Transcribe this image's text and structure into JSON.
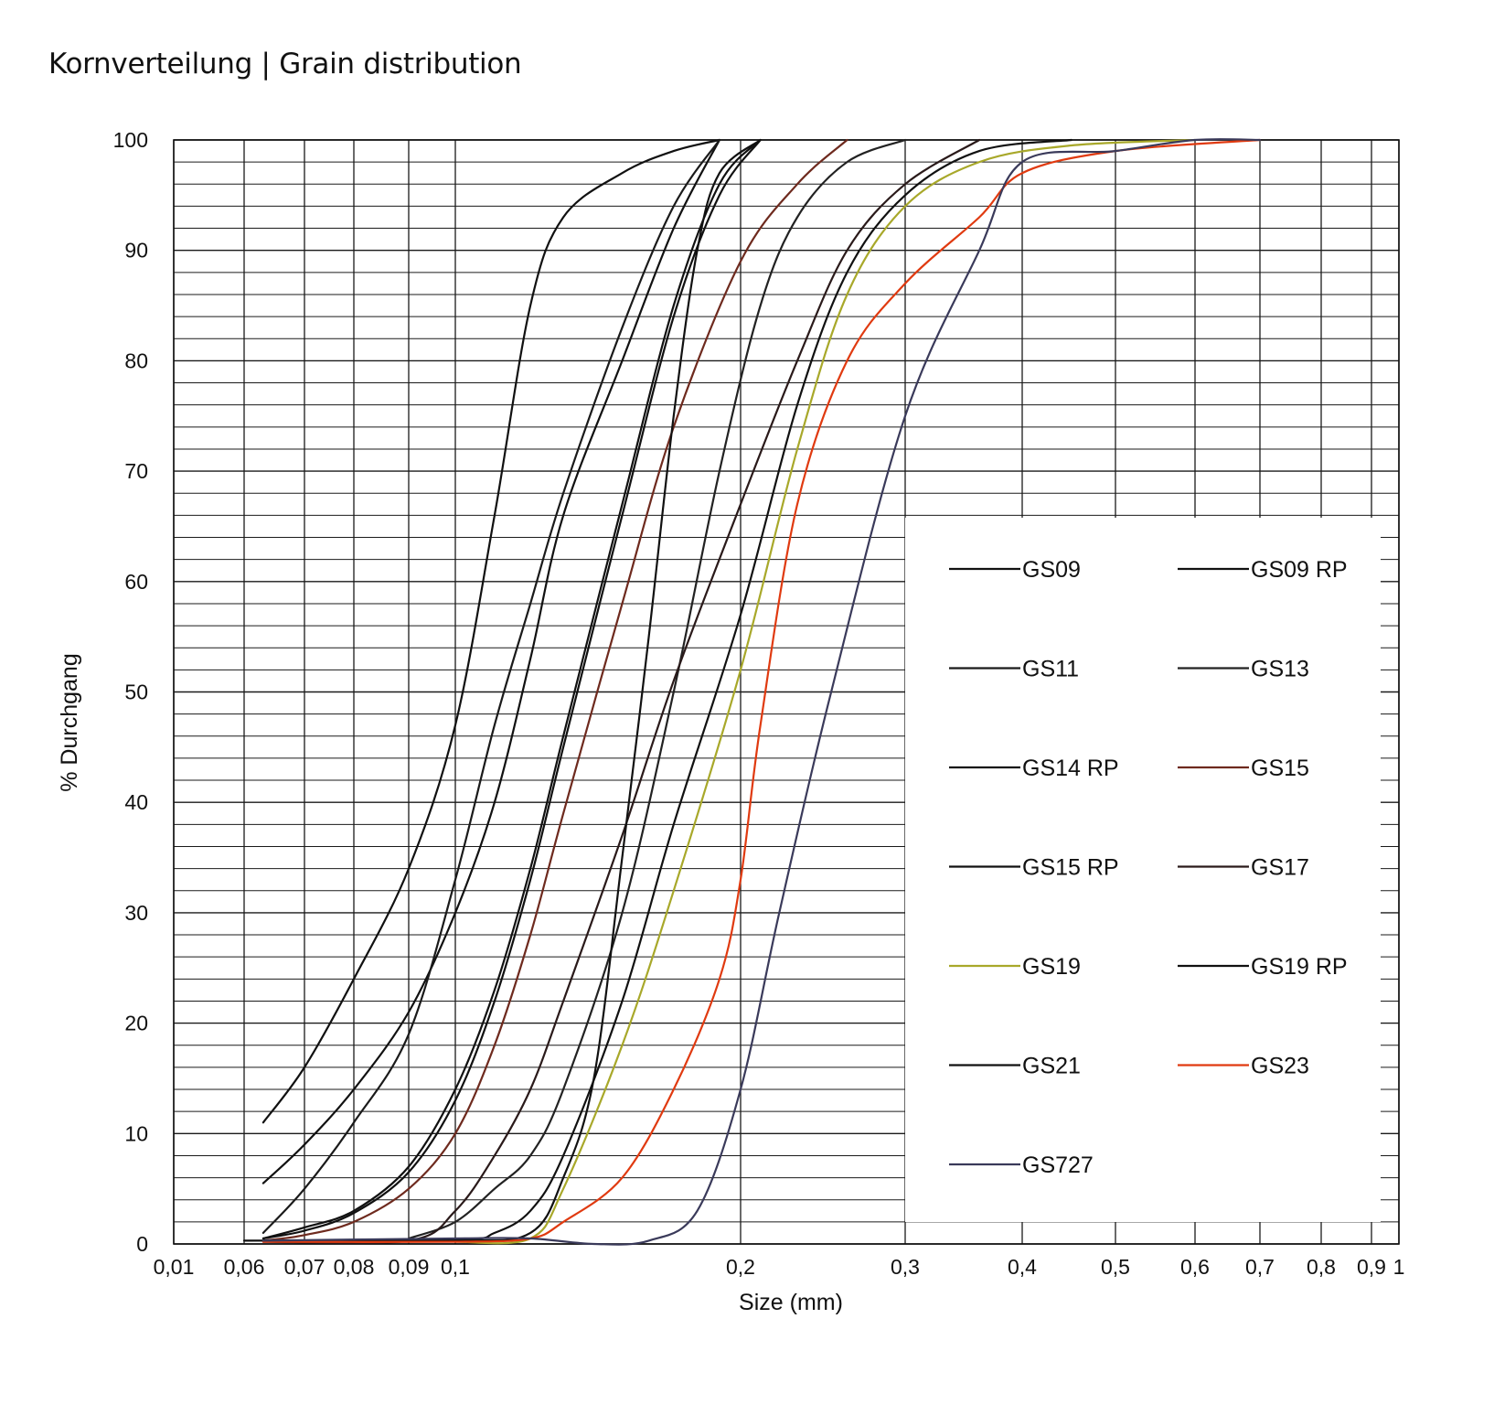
{
  "chart_data": {
    "type": "line",
    "title": "Kornverteilung | Grain distribution",
    "xlabel": "Size (mm)",
    "ylabel": "% Durchgang",
    "ylim": [
      0,
      100
    ],
    "grid": true,
    "legend_position": "bottom-right",
    "x_ticks": [
      {
        "label": "0,01",
        "value": 0.01
      },
      {
        "label": "0,06",
        "value": 0.06
      },
      {
        "label": "0,07",
        "value": 0.07
      },
      {
        "label": "0,08",
        "value": 0.08
      },
      {
        "label": "0,09",
        "value": 0.09
      },
      {
        "label": "0,1",
        "value": 0.1
      },
      {
        "label": "0,2",
        "value": 0.2
      },
      {
        "label": "0,3",
        "value": 0.3
      },
      {
        "label": "0,4",
        "value": 0.4
      },
      {
        "label": "0,5",
        "value": 0.5
      },
      {
        "label": "0,6",
        "value": 0.6
      },
      {
        "label": "0,7",
        "value": 0.7
      },
      {
        "label": "0,8",
        "value": 0.8
      },
      {
        "label": "0,9",
        "value": 0.9
      },
      {
        "label": "1",
        "value": 1
      }
    ],
    "y_ticks": [
      0,
      10,
      20,
      30,
      40,
      50,
      60,
      70,
      80,
      90,
      100
    ],
    "series": [
      {
        "name": "GS09",
        "color": "#111111",
        "points": [
          [
            0.063,
            11
          ],
          [
            0.07,
            16
          ],
          [
            0.08,
            24
          ],
          [
            0.09,
            34
          ],
          [
            0.1,
            47
          ],
          [
            0.11,
            66
          ],
          [
            0.12,
            85
          ],
          [
            0.13,
            93
          ],
          [
            0.15,
            97
          ],
          [
            0.17,
            99
          ],
          [
            0.19,
            100
          ]
        ]
      },
      {
        "name": "GS09 RP",
        "color": "#111111",
        "points": [
          [
            0.063,
            5.5
          ],
          [
            0.07,
            9
          ],
          [
            0.08,
            14
          ],
          [
            0.09,
            21
          ],
          [
            0.1,
            30
          ],
          [
            0.11,
            40
          ],
          [
            0.12,
            53
          ],
          [
            0.13,
            66
          ],
          [
            0.15,
            80
          ],
          [
            0.17,
            92
          ],
          [
            0.19,
            100
          ]
        ]
      },
      {
        "name": "GS11",
        "color": "#1a1a1a",
        "points": [
          [
            0.063,
            1
          ],
          [
            0.07,
            5
          ],
          [
            0.08,
            11
          ],
          [
            0.09,
            19
          ],
          [
            0.1,
            33
          ],
          [
            0.11,
            47
          ],
          [
            0.12,
            58
          ],
          [
            0.13,
            68
          ],
          [
            0.15,
            83
          ],
          [
            0.17,
            94
          ],
          [
            0.19,
            100
          ]
        ]
      },
      {
        "name": "GS13",
        "color": "#222222",
        "points": [
          [
            0.09,
            0.5
          ],
          [
            0.1,
            2
          ],
          [
            0.11,
            5
          ],
          [
            0.12,
            8
          ],
          [
            0.13,
            14
          ],
          [
            0.15,
            30
          ],
          [
            0.17,
            50
          ],
          [
            0.19,
            70
          ],
          [
            0.21,
            85
          ],
          [
            0.23,
            93
          ],
          [
            0.26,
            98
          ],
          [
            0.3,
            100
          ]
        ]
      },
      {
        "name": "GS14 RP",
        "color": "#111111",
        "points": [
          [
            0.063,
            0.5
          ],
          [
            0.07,
            1.5
          ],
          [
            0.08,
            3
          ],
          [
            0.09,
            7
          ],
          [
            0.1,
            14
          ],
          [
            0.11,
            23
          ],
          [
            0.12,
            34
          ],
          [
            0.13,
            46
          ],
          [
            0.15,
            67
          ],
          [
            0.17,
            85
          ],
          [
            0.19,
            96
          ],
          [
            0.21,
            100
          ]
        ]
      },
      {
        "name": "GS15",
        "color": "#6e2a1e",
        "points": [
          [
            0.063,
            0.3
          ],
          [
            0.07,
            0.8
          ],
          [
            0.08,
            2
          ],
          [
            0.09,
            5
          ],
          [
            0.1,
            10
          ],
          [
            0.11,
            18
          ],
          [
            0.12,
            28
          ],
          [
            0.13,
            39
          ],
          [
            0.15,
            58
          ],
          [
            0.17,
            74
          ],
          [
            0.2,
            89
          ],
          [
            0.23,
            96
          ],
          [
            0.26,
            100
          ]
        ]
      },
      {
        "name": "GS15 RP",
        "color": "#111111",
        "points": [
          [
            0.063,
            0.5
          ],
          [
            0.07,
            1.2
          ],
          [
            0.08,
            2.8
          ],
          [
            0.09,
            6.5
          ],
          [
            0.1,
            13
          ],
          [
            0.11,
            22
          ],
          [
            0.12,
            33
          ],
          [
            0.13,
            45
          ],
          [
            0.15,
            66
          ],
          [
            0.17,
            84
          ],
          [
            0.19,
            95
          ],
          [
            0.21,
            100
          ]
        ]
      },
      {
        "name": "GS17",
        "color": "#2a1a1a",
        "points": [
          [
            0.063,
            0.2
          ],
          [
            0.09,
            0.3
          ],
          [
            0.1,
            3
          ],
          [
            0.11,
            8
          ],
          [
            0.12,
            14
          ],
          [
            0.13,
            22
          ],
          [
            0.15,
            37
          ],
          [
            0.17,
            51
          ],
          [
            0.2,
            67
          ],
          [
            0.23,
            80
          ],
          [
            0.26,
            90
          ],
          [
            0.3,
            96
          ],
          [
            0.36,
            100
          ]
        ]
      },
      {
        "name": "GS19",
        "color": "#a8a82a",
        "points": [
          [
            0.1,
            0.2
          ],
          [
            0.12,
            0.5
          ],
          [
            0.13,
            5
          ],
          [
            0.15,
            18
          ],
          [
            0.17,
            32
          ],
          [
            0.2,
            52
          ],
          [
            0.23,
            72
          ],
          [
            0.26,
            86
          ],
          [
            0.3,
            94
          ],
          [
            0.36,
            98
          ],
          [
            0.45,
            99.5
          ],
          [
            0.6,
            100
          ]
        ]
      },
      {
        "name": "GS19 RP",
        "color": "#111111",
        "points": [
          [
            0.06,
            0.3
          ],
          [
            0.1,
            0.4
          ],
          [
            0.11,
            1
          ],
          [
            0.12,
            3
          ],
          [
            0.13,
            8
          ],
          [
            0.15,
            22
          ],
          [
            0.17,
            38
          ],
          [
            0.2,
            57
          ],
          [
            0.23,
            76
          ],
          [
            0.26,
            88
          ],
          [
            0.3,
            95
          ],
          [
            0.36,
            99
          ],
          [
            0.45,
            100
          ]
        ]
      },
      {
        "name": "GS21",
        "color": "#111111",
        "points": [
          [
            0.063,
            0.3
          ],
          [
            0.1,
            0.3
          ],
          [
            0.12,
            1
          ],
          [
            0.13,
            6
          ],
          [
            0.14,
            15
          ],
          [
            0.15,
            35
          ],
          [
            0.16,
            55
          ],
          [
            0.17,
            75
          ],
          [
            0.18,
            90
          ],
          [
            0.19,
            97
          ],
          [
            0.21,
            100
          ]
        ]
      },
      {
        "name": "GS23",
        "color": "#e03a10",
        "points": [
          [
            0.063,
            0.2
          ],
          [
            0.1,
            0.2
          ],
          [
            0.12,
            0.5
          ],
          [
            0.13,
            2
          ],
          [
            0.15,
            6
          ],
          [
            0.17,
            14
          ],
          [
            0.19,
            24
          ],
          [
            0.2,
            33
          ],
          [
            0.21,
            47
          ],
          [
            0.23,
            67
          ],
          [
            0.26,
            80
          ],
          [
            0.3,
            87
          ],
          [
            0.36,
            93
          ],
          [
            0.4,
            97
          ],
          [
            0.5,
            99
          ],
          [
            0.7,
            100
          ]
        ]
      },
      {
        "name": "GS727",
        "color": "#3a3a5a",
        "points": [
          [
            0.063,
            0.3
          ],
          [
            0.1,
            0.5
          ],
          [
            0.12,
            0.5
          ],
          [
            0.14,
            0
          ],
          [
            0.16,
            0.3
          ],
          [
            0.18,
            3
          ],
          [
            0.2,
            14
          ],
          [
            0.22,
            30
          ],
          [
            0.25,
            50
          ],
          [
            0.3,
            75
          ],
          [
            0.36,
            90
          ],
          [
            0.4,
            98
          ],
          [
            0.5,
            99
          ],
          [
            0.6,
            100
          ],
          [
            0.7,
            100
          ]
        ]
      }
    ]
  }
}
